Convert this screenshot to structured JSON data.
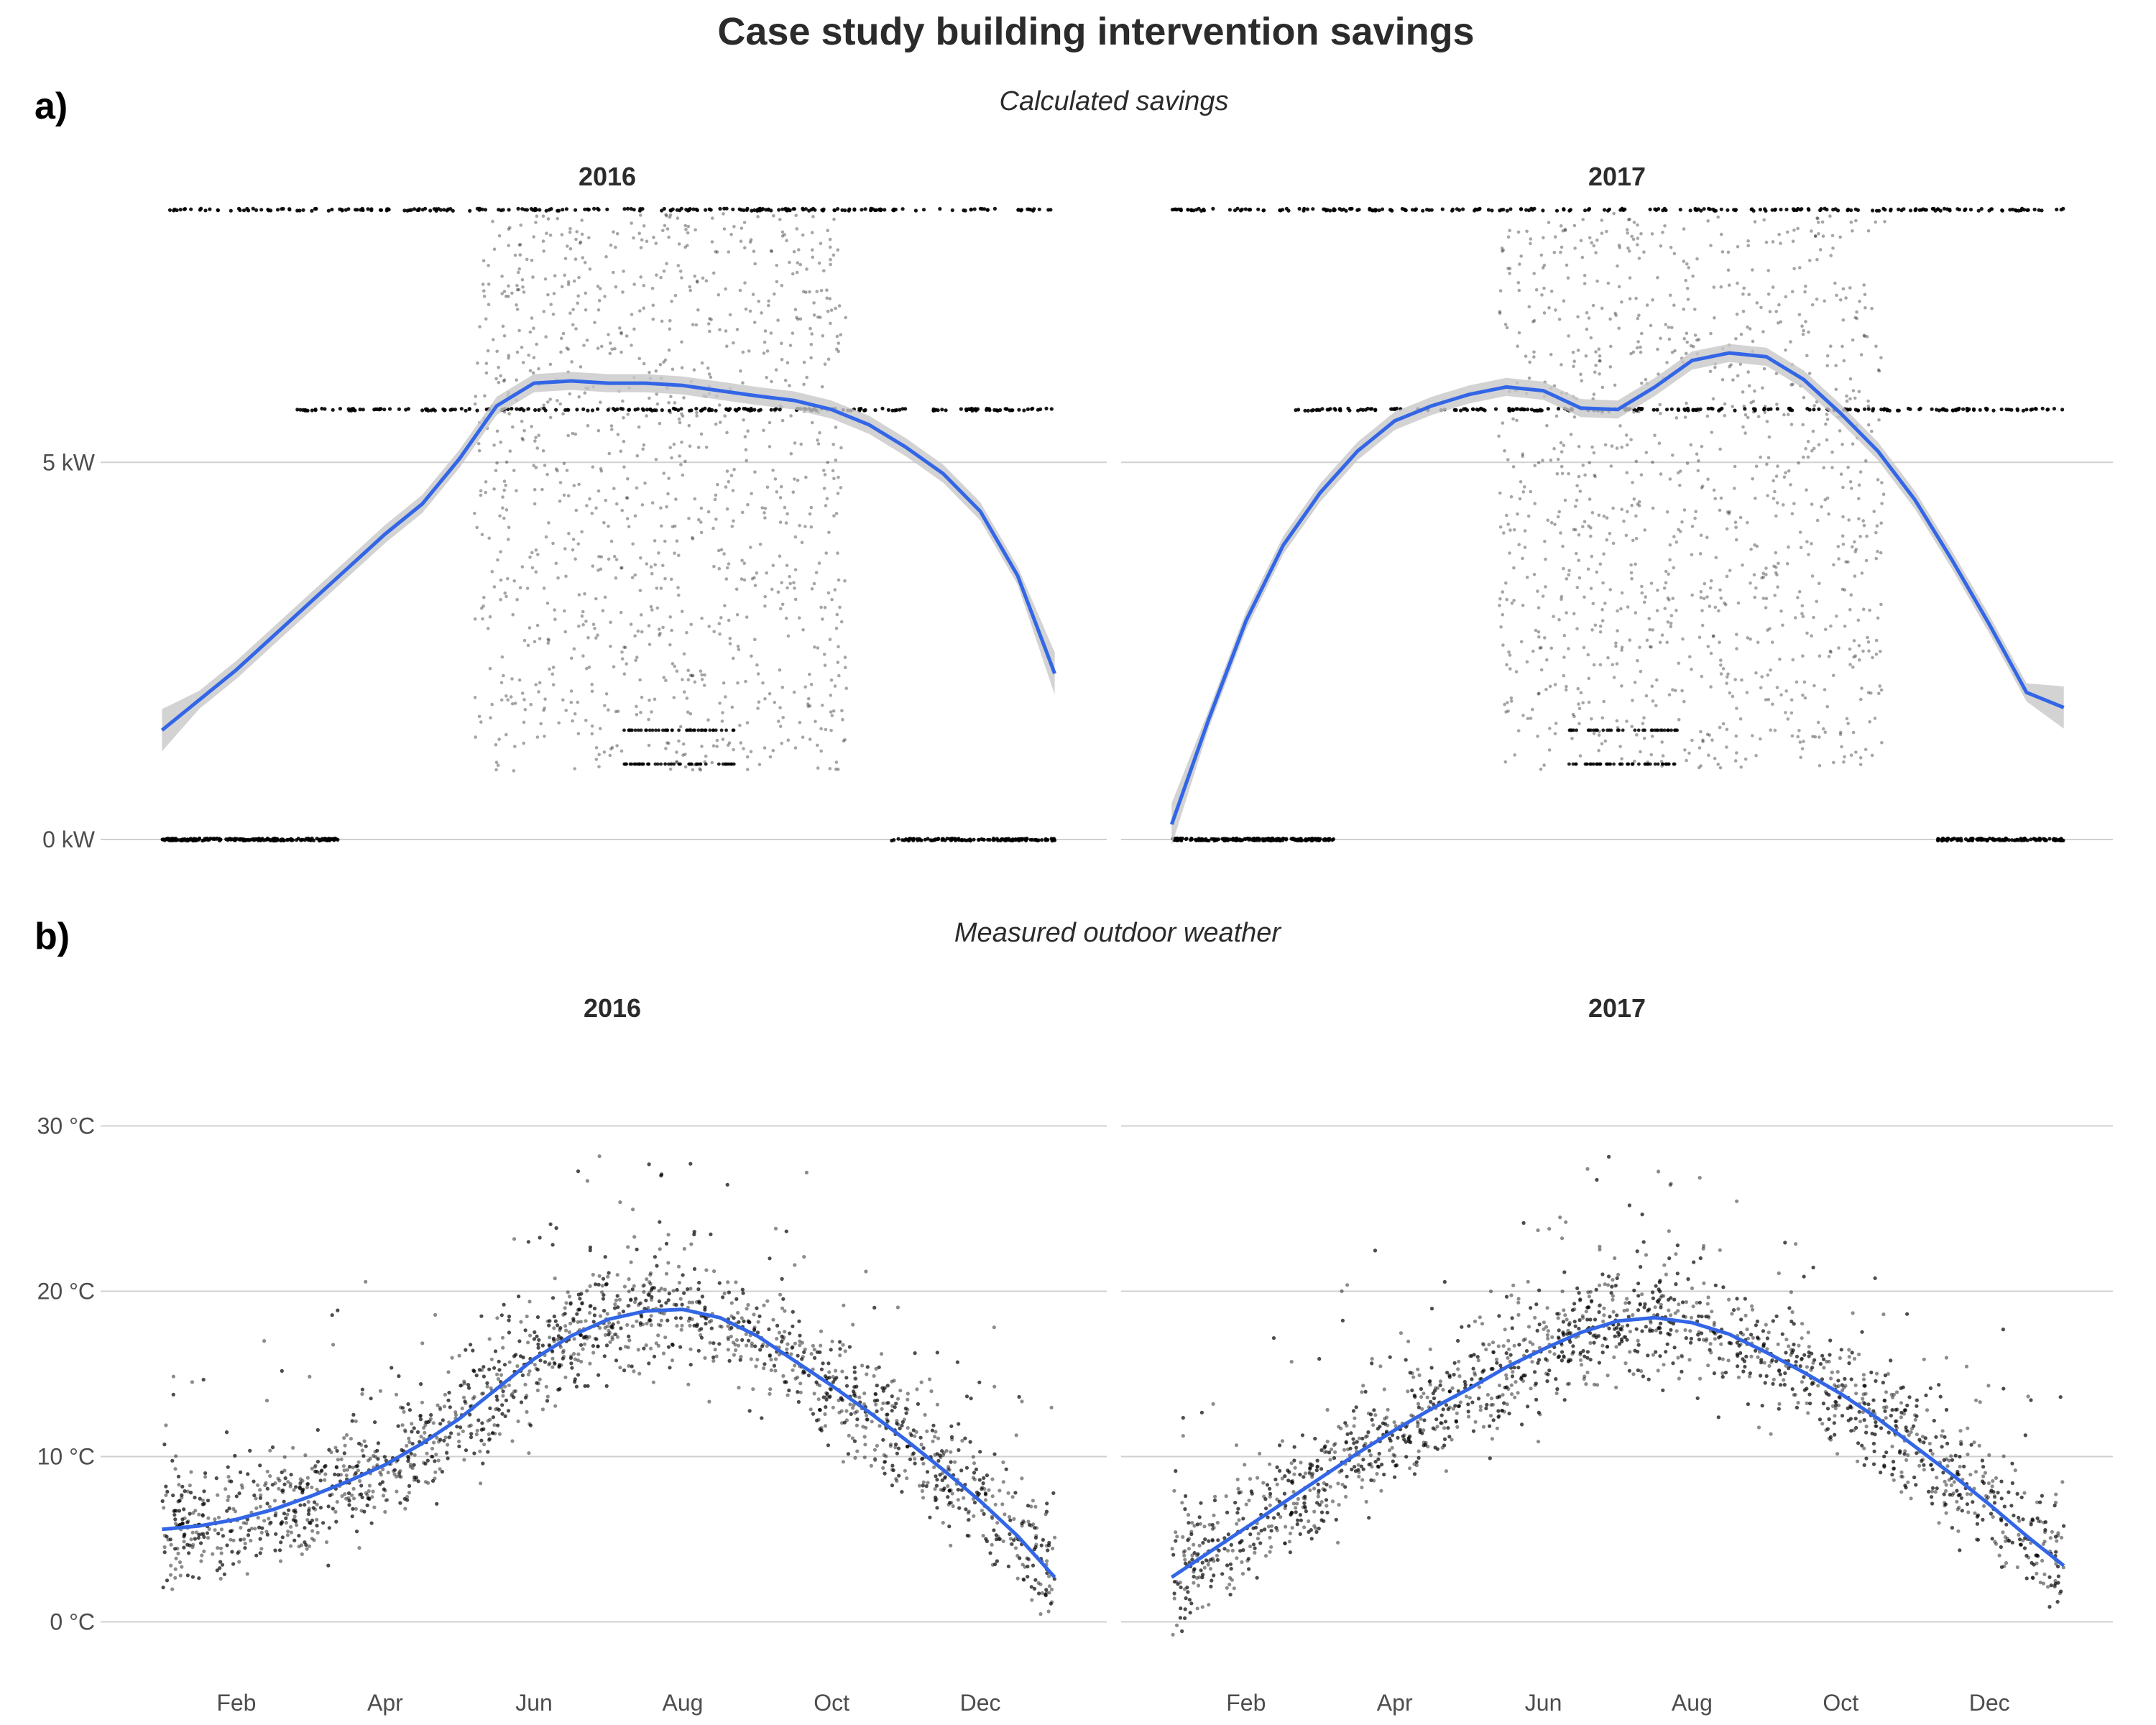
{
  "figure": {
    "title": "Case study building intervention savings"
  },
  "chart_data": [
    {
      "type": "scatter",
      "panel_tag": "a)",
      "subtitle": "Calculated savings",
      "x_kind": "month-of-year",
      "x_ticks": [
        2,
        4,
        6,
        8,
        10,
        12
      ],
      "y_ticks": [
        0,
        5
      ],
      "y_tick_labels": [
        "0 kW",
        "5 kW"
      ],
      "ylim": [
        -0.4,
        8.7
      ],
      "grid": "horizontal",
      "point_color": "#000000",
      "smooth_color": "#3366e6",
      "band_color": "#c8c8c8",
      "facets": [
        {
          "title": "2016",
          "smooth": {
            "x": [
              1.0,
              1.5,
              2.0,
              2.5,
              3.0,
              3.5,
              4.0,
              4.5,
              5.0,
              5.5,
              6.0,
              6.5,
              7.0,
              7.5,
              8.0,
              8.5,
              9.0,
              9.5,
              10.0,
              10.5,
              11.0,
              11.5,
              12.0,
              12.5,
              13.0
            ],
            "y": [
              1.45,
              1.85,
              2.25,
              2.7,
              3.15,
              3.6,
              4.05,
              4.45,
              5.05,
              5.75,
              6.05,
              6.08,
              6.05,
              6.05,
              6.02,
              5.95,
              5.88,
              5.82,
              5.7,
              5.5,
              5.2,
              4.85,
              4.35,
              3.5,
              2.2
            ]
          }
        },
        {
          "title": "2017",
          "smooth": {
            "x": [
              1.0,
              1.5,
              2.0,
              2.5,
              3.0,
              3.5,
              4.0,
              4.5,
              5.0,
              5.5,
              6.0,
              6.5,
              7.0,
              7.5,
              8.0,
              8.5,
              9.0,
              9.5,
              10.0,
              10.5,
              11.0,
              11.5,
              12.0,
              12.5,
              13.0
            ],
            "y": [
              0.2,
              1.6,
              2.9,
              3.9,
              4.6,
              5.15,
              5.55,
              5.75,
              5.9,
              6.0,
              5.95,
              5.72,
              5.7,
              6.0,
              6.35,
              6.45,
              6.4,
              6.1,
              5.65,
              5.15,
              4.5,
              3.7,
              2.85,
              1.95,
              1.75
            ]
          }
        }
      ]
    },
    {
      "type": "scatter",
      "panel_tag": "b)",
      "subtitle": "Measured outdoor weather",
      "x_kind": "month-of-year",
      "x_ticks": [
        2,
        4,
        6,
        8,
        10,
        12
      ],
      "x_tick_labels": [
        "Feb",
        "Apr",
        "Jun",
        "Aug",
        "Oct",
        "Dec"
      ],
      "y_ticks": [
        0,
        10,
        20,
        30
      ],
      "y_tick_labels": [
        "0 °C",
        "10 °C",
        "20 °C",
        "30 °C"
      ],
      "ylim": [
        -4.5,
        35.5
      ],
      "grid": "horizontal",
      "point_color": "#000000",
      "smooth_color": "#3366e6",
      "facets": [
        {
          "title": "2016",
          "smooth": {
            "x": [
              1.0,
              1.5,
              2.0,
              2.5,
              3.0,
              3.5,
              4.0,
              4.5,
              5.0,
              5.5,
              6.0,
              6.5,
              7.0,
              7.5,
              8.0,
              8.5,
              9.0,
              9.5,
              10.0,
              10.5,
              11.0,
              11.5,
              12.0,
              12.5,
              13.0
            ],
            "y": [
              5.6,
              5.8,
              6.2,
              6.8,
              7.6,
              8.5,
              9.5,
              10.8,
              12.3,
              14.1,
              15.9,
              17.3,
              18.3,
              18.8,
              18.9,
              18.4,
              17.3,
              15.8,
              14.3,
              12.7,
              11.0,
              9.2,
              7.3,
              5.2,
              2.7
            ]
          }
        },
        {
          "title": "2017",
          "smooth": {
            "x": [
              1.0,
              1.5,
              2.0,
              2.5,
              3.0,
              3.5,
              4.0,
              4.5,
              5.0,
              5.5,
              6.0,
              6.5,
              7.0,
              7.5,
              8.0,
              8.5,
              9.0,
              9.5,
              10.0,
              10.5,
              11.0,
              11.5,
              12.0,
              12.5,
              13.0
            ],
            "y": [
              2.7,
              4.2,
              5.7,
              7.2,
              8.7,
              10.2,
              11.6,
              12.9,
              14.1,
              15.4,
              16.5,
              17.5,
              18.2,
              18.4,
              18.1,
              17.4,
              16.3,
              15.1,
              13.8,
              12.3,
              10.6,
              8.9,
              7.1,
              5.2,
              3.4
            ]
          }
        }
      ]
    }
  ]
}
